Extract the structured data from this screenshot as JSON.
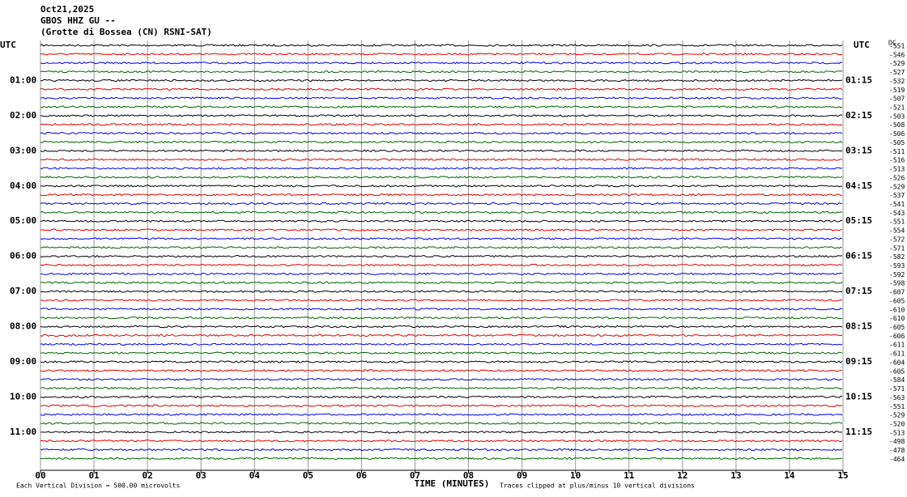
{
  "chart_data": {
    "type": "helicorder",
    "header": [
      "Oct21,2025",
      "GBOS HHZ GU --",
      "(Grotte di Bossea (CN) RSNI-SAT)"
    ],
    "left_labels": [
      "UTC",
      "01:00",
      "02:00",
      "03:00",
      "04:00",
      "05:00",
      "06:00",
      "07:00",
      "08:00",
      "09:00",
      "10:00",
      "11:00"
    ],
    "right_labels": [
      "UTC",
      "01:15",
      "02:15",
      "03:15",
      "04:15",
      "05:15",
      "06:15",
      "07:15",
      "08:15",
      "09:15",
      "10:15",
      "11:15"
    ],
    "offset_title": "DC",
    "offsets": [
      -551,
      -546,
      -529,
      -527,
      -532,
      -519,
      -507,
      -521,
      -503,
      -508,
      -506,
      -505,
      -511,
      -516,
      -513,
      -526,
      -529,
      -537,
      -541,
      -543,
      -551,
      -554,
      -572,
      -571,
      -582,
      -593,
      -592,
      -598,
      -607,
      -605,
      -610,
      -610,
      -605,
      -606,
      -611,
      -611,
      -604,
      -605,
      -584,
      -571,
      -563,
      -551,
      -529,
      -520,
      -513,
      -498,
      -478,
      -464
    ],
    "colors": [
      "#000000",
      "#e00000",
      "#0000e0",
      "#006400"
    ],
    "xlabel": "TIME (MINUTES)",
    "xlim": [
      0,
      15
    ],
    "xticks": [
      {
        "value": 0,
        "label": "00"
      },
      {
        "value": 1,
        "label": "01"
      },
      {
        "value": 2,
        "label": "02"
      },
      {
        "value": 3,
        "label": "03"
      },
      {
        "value": 4,
        "label": "04"
      },
      {
        "value": 5,
        "label": "05"
      },
      {
        "value": 6,
        "label": "06"
      },
      {
        "value": 7,
        "label": "07"
      },
      {
        "value": 8,
        "label": "08"
      },
      {
        "value": 9,
        "label": "09"
      },
      {
        "value": 10,
        "label": "10"
      },
      {
        "value": 11,
        "label": "11"
      },
      {
        "value": 12,
        "label": "12"
      },
      {
        "value": 13,
        "label": "13"
      },
      {
        "value": 14,
        "label": "14"
      },
      {
        "value": 15,
        "label": "15"
      }
    ],
    "grid": true,
    "scale_note": "Each Vertical Division =  500.00 microvolts",
    "clip_note": "Traces clipped at plus/minus 10 vertical divisions"
  }
}
